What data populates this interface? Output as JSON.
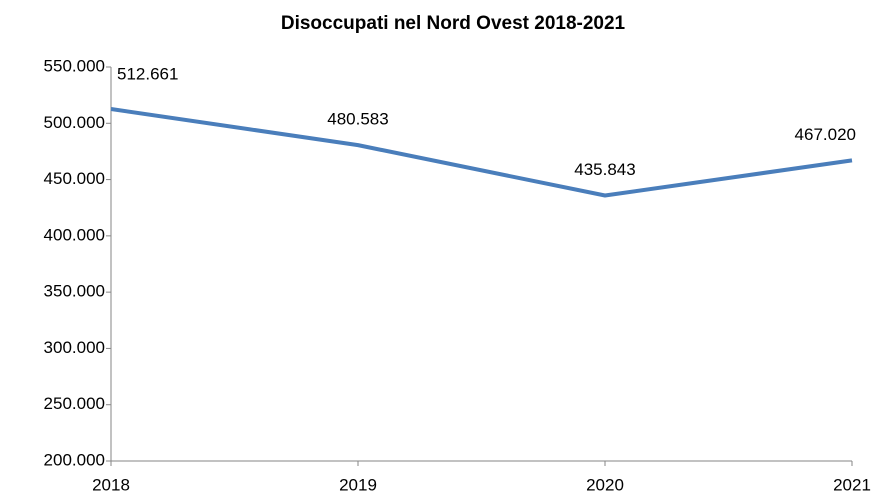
{
  "chart_data": {
    "type": "line",
    "title": "Disoccupati nel Nord Ovest 2018-2021",
    "categories": [
      "2018",
      "2019",
      "2020",
      "2021"
    ],
    "series": [
      {
        "color": "#4a7ebb",
        "values": [
          512661,
          480583,
          435843,
          467020
        ],
        "value_labels": [
          "512.661",
          "480.583",
          "435.843",
          "467.020"
        ]
      }
    ],
    "ylim": [
      200000,
      550000
    ],
    "yticks": [
      {
        "value": 200000,
        "label": "200.000"
      },
      {
        "value": 250000,
        "label": "250.000"
      },
      {
        "value": 300000,
        "label": "300.000"
      },
      {
        "value": 350000,
        "label": "350.000"
      },
      {
        "value": 400000,
        "label": "400.000"
      },
      {
        "value": 450000,
        "label": "450.000"
      },
      {
        "value": 500000,
        "label": "500.000"
      },
      {
        "value": 550000,
        "label": "550.000"
      }
    ],
    "grid": false
  }
}
